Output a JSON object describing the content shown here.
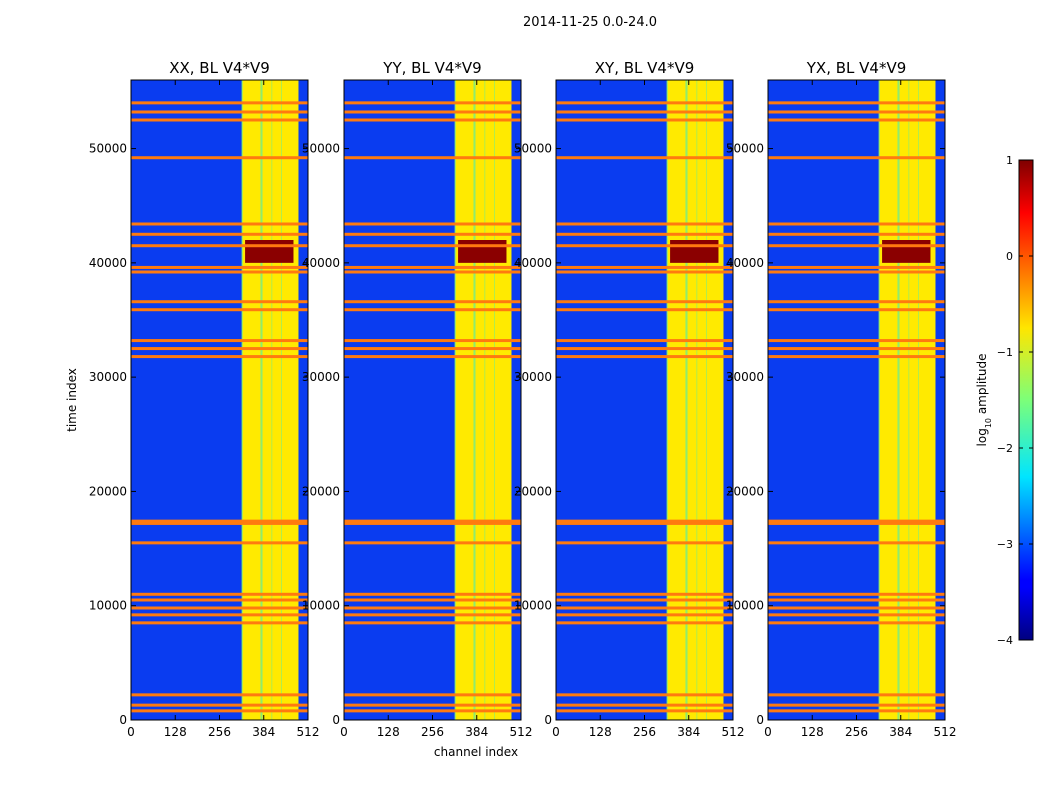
{
  "figure": {
    "suptitle": "2014-11-25 0.0-24.0",
    "xlabel": "channel index",
    "ylabel": "time index",
    "colorbar_label": "log",
    "colorbar_label_sub": "10",
    "colorbar_label_tail": " amplitude",
    "colorbar_ticks": [
      1,
      0,
      -1,
      -2,
      -3,
      -4
    ],
    "colorbar_tick_labels": [
      "1",
      "0",
      "−1",
      "−2",
      "−3",
      "−4"
    ],
    "colors": {
      "background_low": "#0a3cf0",
      "band_high": "#ffea00",
      "flag": "#ff7a0f",
      "saturated": "#8b0000"
    }
  },
  "chart_data": {
    "type": "heatmap",
    "panels": [
      {
        "title": "XX, BL V4*V9"
      },
      {
        "title": "YY, BL V4*V9"
      },
      {
        "title": "XY, BL V4*V9"
      },
      {
        "title": "YX, BL V4*V9"
      }
    ],
    "x_range": [
      0,
      512
    ],
    "y_range": [
      0,
      56000
    ],
    "x_ticks": [
      0,
      128,
      256,
      384,
      512
    ],
    "x_tick_labels": [
      "0",
      "128",
      "256",
      "384",
      "512"
    ],
    "y_ticks": [
      0,
      10000,
      20000,
      30000,
      40000,
      50000
    ],
    "y_tick_labels": [
      "0",
      "10000",
      "20000",
      "30000",
      "40000",
      "50000"
    ],
    "color_range": [
      -4,
      1
    ],
    "colormap": "jet",
    "high_amplitude_channel_band": [
      320,
      480
    ],
    "bright_columns": [
      335,
      360,
      392,
      420,
      448,
      470
    ],
    "flagged_time_rows": [
      800,
      1300,
      2200,
      8500,
      9200,
      9800,
      10500,
      11000,
      15500,
      17200,
      17400,
      31800,
      32500,
      33200,
      35900,
      36600,
      39200,
      39600,
      41500,
      42500,
      43400,
      49200,
      52500,
      53200,
      54000
    ],
    "saturated_time_band": [
      40000,
      42000
    ]
  }
}
